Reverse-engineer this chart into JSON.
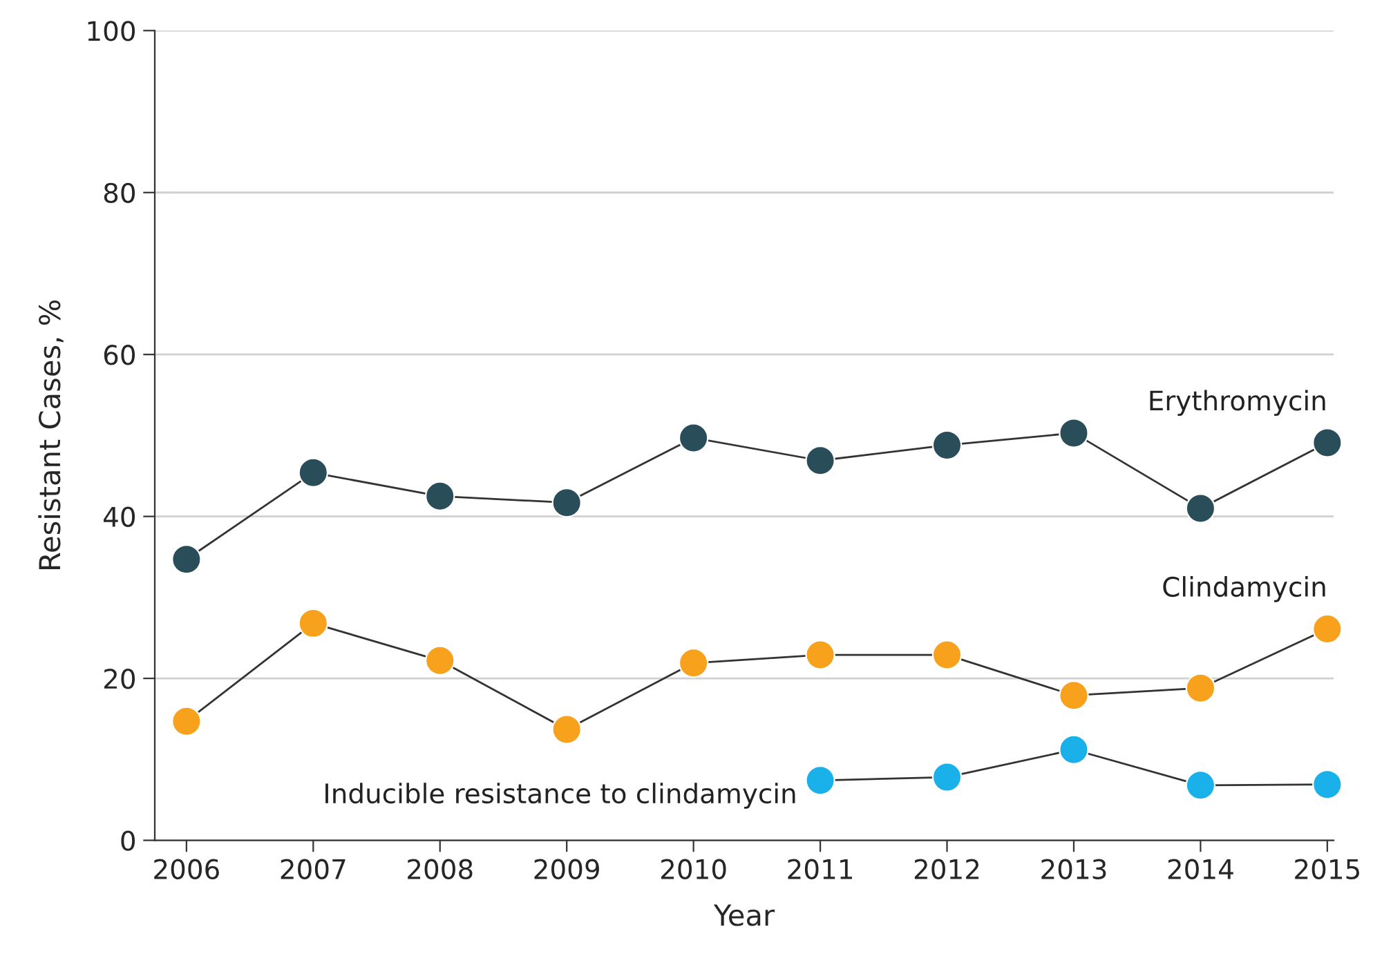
{
  "chart_data": {
    "type": "line",
    "xlabel": "Year",
    "ylabel": "Resistant Cases, %",
    "categories": [
      "2006",
      "2007",
      "2008",
      "2009",
      "2010",
      "2011",
      "2012",
      "2013",
      "2014",
      "2015"
    ],
    "series": [
      {
        "name": "Erythromycin",
        "color": "#2a4d5a",
        "values": [
          34.7,
          45.4,
          42.5,
          41.7,
          49.7,
          46.9,
          48.8,
          50.3,
          41.0,
          49.1
        ]
      },
      {
        "name": "Clindamycin",
        "color": "#f7a11c",
        "values": [
          14.7,
          26.8,
          22.2,
          13.7,
          21.9,
          22.9,
          22.9,
          17.9,
          18.8,
          26.1
        ]
      },
      {
        "name": "Inducible resistance to clindamycin",
        "color": "#1ab0ea",
        "values": [
          null,
          null,
          null,
          null,
          null,
          7.4,
          7.8,
          11.2,
          6.8,
          6.9
        ]
      }
    ],
    "ylim": [
      0,
      100
    ],
    "yticks": [
      0,
      20,
      40,
      60,
      80,
      100
    ],
    "grid": "y",
    "marker": "circle",
    "line_style": "solid",
    "legend": false
  }
}
